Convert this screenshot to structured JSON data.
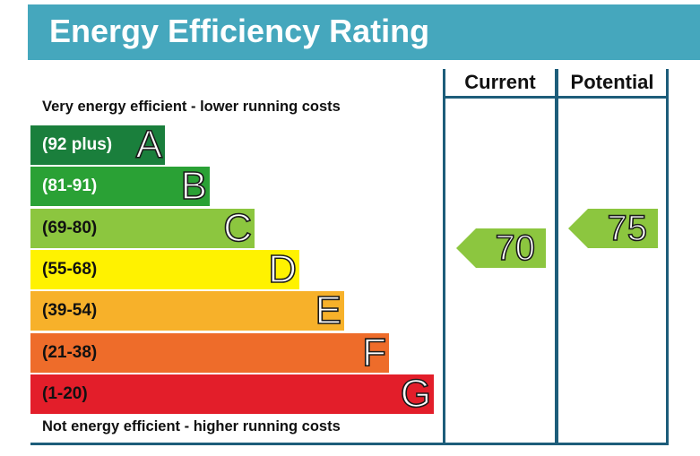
{
  "title": "Energy Efficiency Rating",
  "top_caption": "Very energy efficient - lower running costs",
  "bottom_caption": "Not energy efficient - higher running costs",
  "columns": {
    "current": "Current",
    "potential": "Potential"
  },
  "bands": [
    {
      "range": "(92 plus)",
      "letter": "A",
      "color": "#1a7f3c"
    },
    {
      "range": "(81-91)",
      "letter": "B",
      "color": "#2aa135"
    },
    {
      "range": "(69-80)",
      "letter": "C",
      "color": "#8cc63f"
    },
    {
      "range": "(55-68)",
      "letter": "D",
      "color": "#fff200"
    },
    {
      "range": "(39-54)",
      "letter": "E",
      "color": "#f7b12a"
    },
    {
      "range": "(21-38)",
      "letter": "F",
      "color": "#ee6c2a"
    },
    {
      "range": "(1-20)",
      "letter": "G",
      "color": "#e31e2a"
    }
  ],
  "ratings": {
    "current": {
      "value": "70",
      "band": "C",
      "color": "#8cc63f"
    },
    "potential": {
      "value": "75",
      "band": "C",
      "color": "#8cc63f"
    }
  },
  "chart_data": {
    "type": "table",
    "title": "Energy Efficiency Rating",
    "categories": [
      "A",
      "B",
      "C",
      "D",
      "E",
      "F",
      "G"
    ],
    "ranges": [
      "(92 plus)",
      "(81-91)",
      "(69-80)",
      "(55-68)",
      "(39-54)",
      "(21-38)",
      "(1-20)"
    ],
    "series": [
      {
        "name": "Current",
        "value": 70,
        "band": "C"
      },
      {
        "name": "Potential",
        "value": 75,
        "band": "C"
      }
    ]
  }
}
